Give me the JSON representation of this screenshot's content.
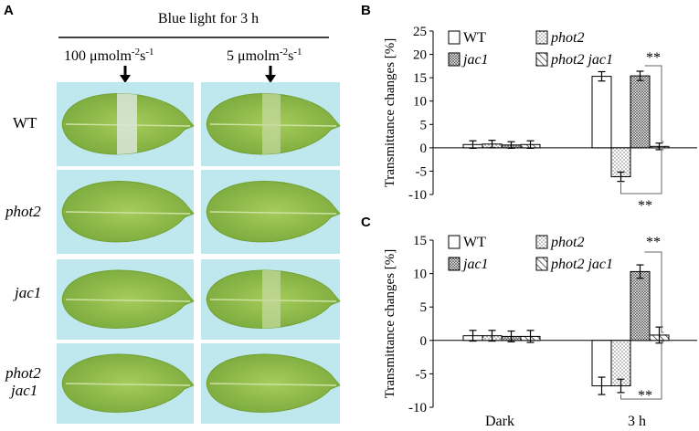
{
  "panel_a": {
    "letter": "A",
    "header": "Blue light for 3 h",
    "conditions": [
      "100 μmolm",
      "5 μmolm"
    ],
    "condition_exponent": "-2",
    "condition_unit": "s",
    "condition_unit_exponent": "-1",
    "rows": [
      "WT",
      "phot2",
      "jac1",
      "phot2",
      "jac1"
    ],
    "colors": {
      "background": "#bfe8ee",
      "leaf": "#8fbd48",
      "leaf_dark": "#6f9c2f",
      "stripe": "#d7e6cf"
    }
  },
  "chart_data": [
    {
      "panel": "B",
      "type": "bar",
      "ylabel": "Transmittance changes [%]",
      "ylim": [
        -10,
        25
      ],
      "yticks": [
        25,
        20,
        15,
        10,
        5,
        0,
        -5,
        -10
      ],
      "categories": [
        "Dark",
        "3 h"
      ],
      "series": [
        {
          "name": "WT",
          "values": [
            0.7,
            15.3
          ],
          "errors": [
            0.8,
            1.0
          ],
          "pattern": "open"
        },
        {
          "name": "phot2",
          "values": [
            0.8,
            -6.2
          ],
          "errors": [
            0.8,
            1.0
          ],
          "pattern": "dots"
        },
        {
          "name": "jac1",
          "values": [
            0.6,
            15.4
          ],
          "errors": [
            0.7,
            1.0
          ],
          "pattern": "dense"
        },
        {
          "name": "phot2 jac1",
          "values": [
            0.7,
            0.3
          ],
          "errors": [
            0.8,
            0.7
          ],
          "pattern": "hatch"
        }
      ],
      "significance": [
        "**",
        "**"
      ]
    },
    {
      "panel": "C",
      "type": "bar",
      "ylabel": "Transmittance changes [%]",
      "ylim": [
        -10,
        15
      ],
      "yticks": [
        15,
        10,
        5,
        0,
        -5,
        -10
      ],
      "categories": [
        "Dark",
        "3 h"
      ],
      "series": [
        {
          "name": "WT",
          "values": [
            0.7,
            -6.8
          ],
          "errors": [
            0.8,
            1.3
          ],
          "pattern": "open"
        },
        {
          "name": "phot2",
          "values": [
            0.7,
            -6.8
          ],
          "errors": [
            0.8,
            1.0
          ],
          "pattern": "dots"
        },
        {
          "name": "jac1",
          "values": [
            0.6,
            10.3
          ],
          "errors": [
            0.8,
            1.0
          ],
          "pattern": "dense"
        },
        {
          "name": "phot2 jac1",
          "values": [
            0.6,
            0.8
          ],
          "errors": [
            0.9,
            1.2
          ],
          "pattern": "hatch"
        }
      ],
      "significance": [
        "**",
        "**"
      ]
    }
  ],
  "legend_labels": [
    "WT",
    "phot2",
    "jac1",
    "phot2 jac1"
  ],
  "panel_b_letter": "B",
  "panel_c_letter": "C",
  "x_labels": [
    "Dark",
    "3 h"
  ]
}
